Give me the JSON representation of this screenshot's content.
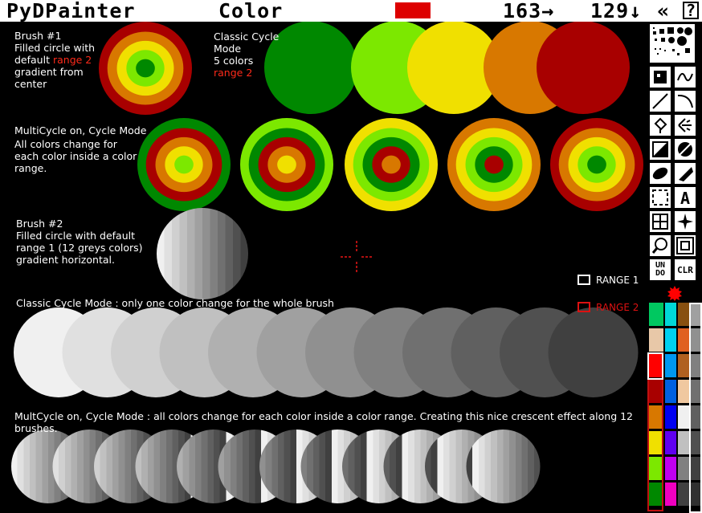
{
  "app": {
    "title": "PyDPainter",
    "menu_color": "Color",
    "coord_x": "163→",
    "coord_y": "129↓",
    "arrows": "«",
    "help": "?",
    "current_color": "#dd0000"
  },
  "notes": {
    "brush1": {
      "title": "Brush #1",
      "line1": "Filled circle with",
      "line2a": "default ",
      "line2b": "range 2",
      "line3": "gradient from",
      "line4": "center"
    },
    "classic1": {
      "line1": "Classic Cycle",
      "line2": "Mode",
      "line3": "5 colors",
      "line4": "range 2"
    },
    "multi1": {
      "title": "MultiCycle on, Cycle Mode",
      "line1": "All colors change for",
      "line2": "each color inside a color",
      "line3": "range."
    },
    "brush2": {
      "title": "Brush #2",
      "line1": "Filled circle with default",
      "line2": "range 1 (12 greys colors)",
      "line3": "gradient horizontal."
    },
    "classic2": "Classic Cycle Mode : only one color change for the whole brush",
    "multi2": "MultCycle on, Cycle Mode : all colors change for each color inside a color range. Creating this nice crescent effect along 12 brushes."
  },
  "legend": {
    "range1": "RANGE 1",
    "range2": "RANGE 2",
    "range1_color": "#ffffff",
    "range2_color": "#dd1111"
  },
  "range2_colors": [
    "#a80000",
    "#d87800",
    "#f0e000",
    "#7ce800",
    "#008800"
  ],
  "greys": [
    "#f0f0f0",
    "#e0e0e0",
    "#d0d0d0",
    "#c0c0c0",
    "#b0b0b0",
    "#a0a0a0",
    "#909090",
    "#808080",
    "#707070",
    "#606060",
    "#505050",
    "#404040"
  ],
  "tools": {
    "dotted-brush": "dotted brushes",
    "square-brush": "square brushes",
    "freehand": "freehand",
    "curve": "curve",
    "line": "line",
    "arc": "arc",
    "fill": "fill",
    "airbrush": "airbrush",
    "rect": "rectangle",
    "circle": "circle",
    "ellipse": "ellipse",
    "polygon": "polygon",
    "brush-select": "brush select",
    "text": "text",
    "grid": "grid",
    "symmetry": "symmetry",
    "magnify": "magnify",
    "zoom": "zoom",
    "undo": "UN DO",
    "clear": "CLR"
  },
  "palette": {
    "columns": [
      [
        "#00c860",
        "#e8c8a8",
        "#ff0000",
        "#a80000",
        "#d87800",
        "#f0e000",
        "#7ce800",
        "#008800"
      ],
      [
        "#00d8d8",
        "#00d0f0",
        "#0098f0",
        "#0060e0",
        "#0000f0",
        "#6000f0",
        "#c000f0",
        "#f000c0"
      ],
      [
        "#885010",
        "#e06020",
        "#b06020",
        "#f0c8a0",
        "#f0f0f0",
        "#c0c0c0",
        "#808080",
        "#404040"
      ],
      [
        "#a0a0a0",
        "#909090",
        "#808080",
        "#707070",
        "#606060",
        "#505050",
        "#404040",
        "#303030"
      ]
    ],
    "fg_color": "#ff0000"
  }
}
